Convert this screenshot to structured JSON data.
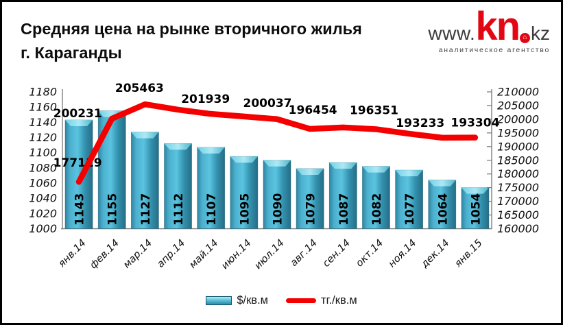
{
  "header": {
    "title_line1": "Средняя цена на рынке вторичного жилья",
    "title_line2": "г. Караганды",
    "logo": {
      "www": "www.",
      "kn": "kn",
      "dot_glyph": "⌂",
      "kz": "kz",
      "subtitle": "аналитическое агентство"
    }
  },
  "legend": {
    "bar_label": "$/кв.м",
    "line_label": "тг./кв.м"
  },
  "colors": {
    "bar_main": "#3fa3c0",
    "bar_light": "#9fe4f2",
    "bar_dark": "#266e87",
    "bar_outline": "#1b5a70",
    "line": "#f50000",
    "axis": "#7f7f7f",
    "logo_red": "#e30613",
    "logo_dark": "#3c3c3c"
  },
  "chart_data": {
    "type": "bar+line combo",
    "categories": [
      "янв.14",
      "фев.14",
      "мар.14",
      "апр.14",
      "май.14",
      "июн.14",
      "июл.14",
      "авг.14",
      "сен.14",
      "окт.14",
      "ноя.14",
      "дек.14",
      "янв.15"
    ],
    "series": [
      {
        "name": "$/кв.м",
        "type": "bar",
        "axis": "left",
        "values": [
          1143,
          1155,
          1127,
          1112,
          1107,
          1095,
          1090,
          1079,
          1087,
          1082,
          1077,
          1064,
          1054
        ]
      },
      {
        "name": "тг./кв.м",
        "type": "line",
        "axis": "right",
        "values": [
          177119,
          200231,
          205463,
          203500,
          201939,
          201000,
          200037,
          196454,
          197000,
          196351,
          194700,
          193233,
          193304
        ],
        "point_labels": [
          "177119",
          "200231",
          "205463",
          "",
          "201939",
          "",
          "200037",
          "196454",
          "",
          "196351",
          "",
          "193233",
          "193304"
        ]
      }
    ],
    "left_axis": {
      "min": 1000,
      "max": 1180,
      "step": 20
    },
    "right_axis": {
      "min": 160000,
      "max": 210000,
      "step": 5000
    },
    "grid": "off",
    "legend_position": "bottom"
  }
}
